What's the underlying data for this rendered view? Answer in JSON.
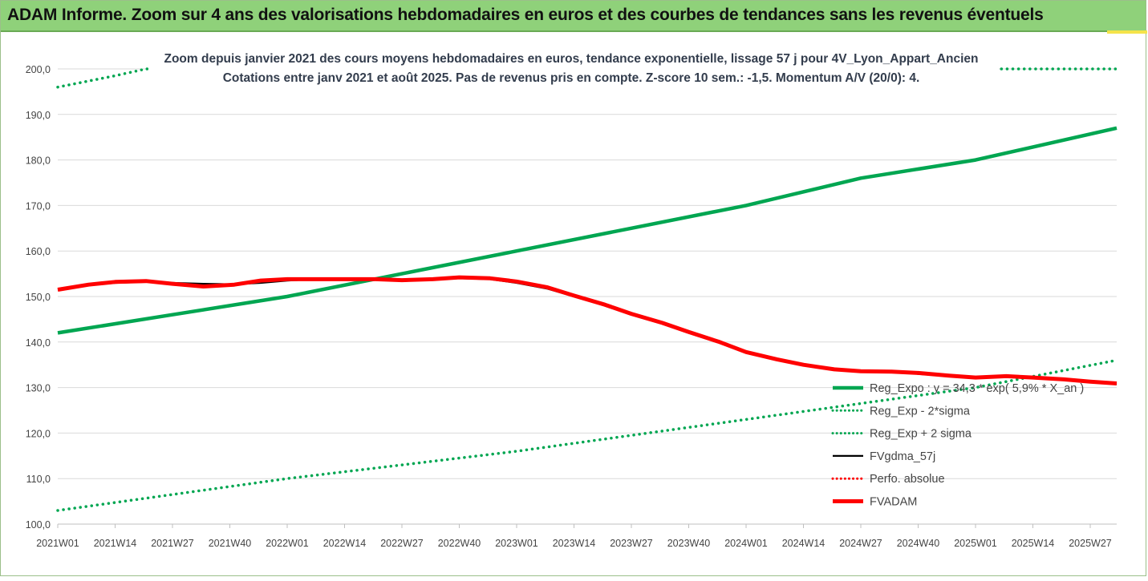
{
  "banner": {
    "title": "ADAM Informe. Zoom sur 4 ans des valorisations hebdomadaires en euros et des courbes de tendances sans les revenus éventuels"
  },
  "chart_data": {
    "type": "line",
    "title": "Zoom depuis janvier 2021 des cours moyens hebdomadaires en euros, tendance exponentielle, lissage 57 j pour 4V_Lyon_Appart_Ancien",
    "subtitle": "Cotations entre janv 2021 et août 2025.  Pas de revenus pris en compte. Z-score 10 sem.: -1,5. Momentum A/V (20/0): 4.",
    "xlabel": "",
    "ylabel": "",
    "ylim": [
      100,
      200
    ],
    "yticks": [
      "100,0",
      "110,0",
      "120,0",
      "130,0",
      "140,0",
      "150,0",
      "160,0",
      "170,0",
      "180,0",
      "190,0",
      "200,0"
    ],
    "x_tick_labels": [
      "2021W01",
      "2021W14",
      "2021W27",
      "2021W40",
      "2022W01",
      "2022W14",
      "2022W27",
      "2022W40",
      "2023W01",
      "2023W14",
      "2023W27",
      "2023W40",
      "2024W01",
      "2024W14",
      "2024W27",
      "2024W40",
      "2025W01",
      "2025W14",
      "2025W27"
    ],
    "x_range_weeks": [
      0,
      240
    ],
    "grid": "horizontal",
    "legend_position": "bottom-right",
    "series": [
      {
        "name": "Reg_Expo : y = 34,3 * exp( 5,9% * X_an )",
        "color": "#00a651",
        "style": "solid-thick",
        "x": [
          0,
          26,
          52,
          78,
          104,
          130,
          156,
          182,
          208,
          240
        ],
        "y": [
          142,
          146,
          150,
          155,
          160,
          165,
          170,
          176,
          180,
          187
        ]
      },
      {
        "name": "Reg_Exp - 2*sigma",
        "color": "#00a651",
        "style": "dotted",
        "x": [
          0,
          52,
          104,
          156,
          208,
          240
        ],
        "y": [
          103,
          110,
          116,
          123,
          130,
          136
        ]
      },
      {
        "name": "Reg_Exp + 2 sigma",
        "color": "#00a651",
        "style": "dotted",
        "x": [
          0,
          13,
          20,
          226,
          240
        ],
        "y": [
          196,
          198.5,
          200,
          200,
          200
        ]
      },
      {
        "name": "FVgdma_57j",
        "color": "#000000",
        "style": "solid",
        "x": [
          0,
          7,
          13,
          20,
          26,
          33,
          40,
          46,
          52,
          58,
          65,
          72,
          78,
          85,
          91,
          98,
          104,
          111,
          117,
          124,
          130,
          137,
          143,
          150,
          156,
          163,
          169,
          176,
          182,
          189,
          195,
          202,
          208,
          215,
          221,
          228,
          234,
          240
        ],
        "y": [
          151.5,
          152.5,
          153,
          153.2,
          153,
          152.8,
          152.7,
          153,
          153.5,
          153.8,
          153.8,
          153.8,
          153.6,
          153.7,
          154,
          153.8,
          153,
          151.7,
          150,
          148,
          146,
          144,
          142,
          139.8,
          137.6,
          136,
          135,
          134,
          133.6,
          133.5,
          133,
          132.5,
          132.2,
          132.3,
          132.1,
          131.8,
          131.2,
          130.8
        ]
      },
      {
        "name": "Perfo. absolue",
        "color": "#ff0000",
        "style": "dotted",
        "x": [],
        "y": []
      },
      {
        "name": "FVADAM",
        "color": "#ff0000",
        "style": "solid-thick",
        "x": [
          0,
          7,
          13,
          20,
          26,
          33,
          40,
          46,
          52,
          58,
          65,
          72,
          78,
          85,
          91,
          98,
          104,
          111,
          117,
          124,
          130,
          137,
          143,
          150,
          156,
          163,
          169,
          176,
          182,
          189,
          195,
          202,
          208,
          215,
          221,
          228,
          234,
          240
        ],
        "y": [
          151.5,
          152.6,
          153.2,
          153.4,
          152.8,
          152.2,
          152.6,
          153.5,
          153.8,
          153.8,
          153.8,
          153.8,
          153.6,
          153.8,
          154.2,
          154,
          153.3,
          152,
          150.2,
          148.2,
          146.2,
          144.2,
          142.2,
          140,
          137.8,
          136.2,
          135,
          134,
          133.6,
          133.5,
          133.2,
          132.6,
          132.2,
          132.5,
          132.2,
          131.8,
          131.3,
          130.9
        ]
      }
    ]
  }
}
